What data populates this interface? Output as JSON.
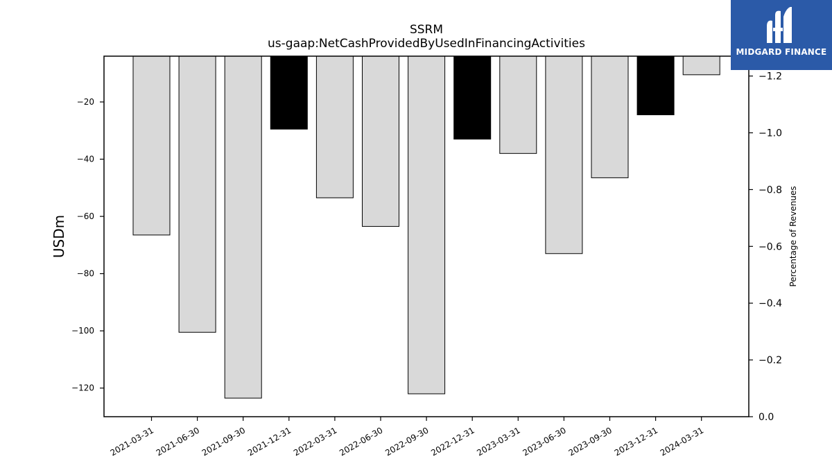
{
  "logo": {
    "text": "MIDGARD FINANCE",
    "icon": "midgard-m-logo-icon",
    "background": "#2b5aa8"
  },
  "chart_data": {
    "type": "bar",
    "title": "SSRM",
    "subtitle": "us-gaap:NetCashProvidedByUsedInFinancingActivities",
    "ylabel": "USDm",
    "y2label": "Percentage of Revenues",
    "categories": [
      "2021-03-31",
      "2021-06-30",
      "2021-09-30",
      "2021-12-31",
      "2022-03-31",
      "2022-06-30",
      "2022-09-30",
      "2022-12-31",
      "2023-03-31",
      "2023-06-30",
      "2023-09-30",
      "2023-12-31",
      "2024-03-31"
    ],
    "values": [
      -66.5,
      -100.5,
      -123.5,
      -29.5,
      -53.5,
      -63.5,
      -122.0,
      -33.0,
      -38.0,
      -73.0,
      -46.5,
      -24.5,
      -10.5
    ],
    "bar_colors": [
      "#d9d9d9",
      "#d9d9d9",
      "#d9d9d9",
      "#000000",
      "#d9d9d9",
      "#d9d9d9",
      "#d9d9d9",
      "#000000",
      "#d9d9d9",
      "#d9d9d9",
      "#d9d9d9",
      "#000000",
      "#d9d9d9"
    ],
    "ylim": [
      -130,
      -4
    ],
    "y_ticks": [
      -20,
      -40,
      -60,
      -80,
      -100,
      -120
    ],
    "y_tick_labels": [
      "−20",
      "−40",
      "−60",
      "−80",
      "−100",
      "−120"
    ],
    "y2lim": [
      0.0,
      -1.27
    ],
    "y2_ticks": [
      -1.2,
      -1.0,
      -0.8,
      -0.6,
      -0.4,
      -0.2,
      0.0
    ],
    "y2_tick_labels": [
      "−1.2",
      "−1.0",
      "−0.8",
      "−0.6",
      "−0.4",
      "−0.2",
      "0.0"
    ],
    "grid": false,
    "legend": "none"
  }
}
